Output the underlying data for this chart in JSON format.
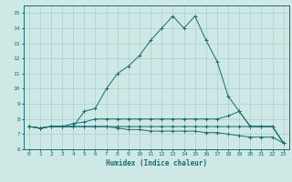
{
  "xlabel": "Humidex (Indice chaleur)",
  "bg_color": "#cde8e5",
  "line_color": "#1a6b6b",
  "grid_color": "#aad0cc",
  "xlim": [
    -0.5,
    23.5
  ],
  "ylim": [
    6.0,
    15.5
  ],
  "xticks": [
    0,
    1,
    2,
    3,
    4,
    5,
    6,
    7,
    8,
    9,
    10,
    11,
    12,
    13,
    14,
    15,
    16,
    17,
    18,
    19,
    20,
    21,
    22,
    23
  ],
  "yticks": [
    6,
    7,
    8,
    9,
    10,
    11,
    12,
    13,
    14,
    15
  ],
  "line1_x": [
    0,
    1,
    2,
    3,
    4,
    5,
    6,
    7,
    8,
    9,
    10,
    11,
    12,
    13,
    14,
    15,
    16,
    17,
    18,
    19,
    20,
    21,
    22,
    23
  ],
  "line1_y": [
    7.5,
    7.4,
    7.5,
    7.5,
    7.5,
    8.5,
    8.7,
    10.0,
    11.0,
    11.5,
    12.2,
    13.2,
    14.0,
    14.8,
    14.0,
    14.8,
    13.2,
    11.8,
    9.5,
    8.5,
    7.5,
    7.5,
    7.5,
    6.4
  ],
  "line2_x": [
    0,
    1,
    2,
    3,
    4,
    5,
    6,
    7,
    8,
    9,
    10,
    11,
    12,
    13,
    14,
    15,
    16,
    17,
    18,
    19,
    20,
    21,
    22,
    23
  ],
  "line2_y": [
    7.5,
    7.4,
    7.5,
    7.5,
    7.7,
    7.8,
    8.0,
    8.0,
    8.0,
    8.0,
    8.0,
    8.0,
    8.0,
    8.0,
    8.0,
    8.0,
    8.0,
    8.0,
    8.2,
    8.5,
    7.5,
    7.5,
    7.5,
    6.4
  ],
  "line3_x": [
    0,
    1,
    2,
    3,
    4,
    5,
    6,
    7,
    8,
    9,
    10,
    11,
    12,
    13,
    14,
    15,
    16,
    17,
    18,
    19,
    20,
    21,
    22,
    23
  ],
  "line3_y": [
    7.5,
    7.4,
    7.5,
    7.5,
    7.5,
    7.5,
    7.5,
    7.5,
    7.5,
    7.5,
    7.5,
    7.5,
    7.5,
    7.5,
    7.5,
    7.5,
    7.5,
    7.5,
    7.5,
    7.5,
    7.5,
    7.5,
    7.5,
    6.4
  ],
  "line4_x": [
    0,
    1,
    2,
    3,
    4,
    5,
    6,
    7,
    8,
    9,
    10,
    11,
    12,
    13,
    14,
    15,
    16,
    17,
    18,
    19,
    20,
    21,
    22,
    23
  ],
  "line4_y": [
    7.5,
    7.4,
    7.5,
    7.5,
    7.5,
    7.5,
    7.5,
    7.5,
    7.4,
    7.3,
    7.3,
    7.2,
    7.2,
    7.2,
    7.2,
    7.2,
    7.1,
    7.1,
    7.0,
    6.9,
    6.8,
    6.8,
    6.8,
    6.4
  ]
}
